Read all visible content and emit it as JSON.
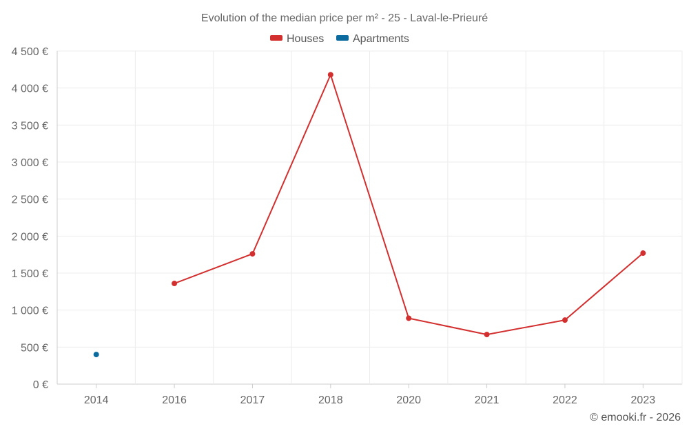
{
  "chart_data": {
    "type": "line",
    "title": "Evolution of the median price per m² - 25 - Laval-le-Prieuré",
    "categories": [
      "2014",
      "2016",
      "2017",
      "2018",
      "2020",
      "2021",
      "2022",
      "2023"
    ],
    "series": [
      {
        "name": "Houses",
        "color": "#d32f2f",
        "values": [
          null,
          1360,
          1760,
          4180,
          890,
          670,
          865,
          1770
        ]
      },
      {
        "name": "Apartments",
        "color": "#0b6a9e",
        "values": [
          400,
          null,
          null,
          null,
          null,
          null,
          null,
          null
        ]
      }
    ],
    "y_ticks": [
      0,
      500,
      1000,
      1500,
      2000,
      2500,
      3000,
      3500,
      4000,
      4500
    ],
    "y_tick_labels": [
      "0 €",
      "500 €",
      "1 000 €",
      "1 500 €",
      "2 000 €",
      "2 500 €",
      "3 000 €",
      "3 500 €",
      "4 000 €",
      "4 500 €"
    ],
    "ylim": [
      0,
      4500
    ],
    "legend_position": "top-center",
    "grid": true
  },
  "credit": "© emooki.fr - 2026"
}
